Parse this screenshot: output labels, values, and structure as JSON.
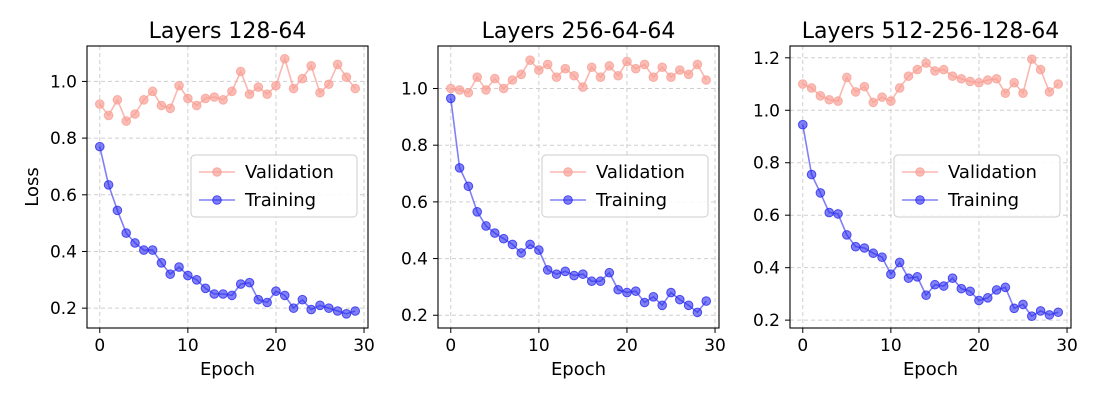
{
  "chart_data": [
    {
      "type": "line",
      "title": "Layers 128-64",
      "xlabel": "Epoch",
      "ylabel": "Loss",
      "xlim": [
        -1.45,
        30.45
      ],
      "ylim": [
        0.13,
        1.125
      ],
      "xticks": [
        0,
        10,
        20,
        30
      ],
      "xtick_labels": [
        "0",
        "10",
        "20",
        "30"
      ],
      "yticks": [
        0.2,
        0.4,
        0.6,
        0.8,
        1.0
      ],
      "ytick_labels": [
        "0.2",
        "0.4",
        "0.6",
        "0.8",
        "1.0"
      ],
      "grid": true,
      "legend": "center-right",
      "x": [
        0,
        1,
        2,
        3,
        4,
        5,
        6,
        7,
        8,
        9,
        10,
        11,
        12,
        13,
        14,
        15,
        16,
        17,
        18,
        19,
        20,
        21,
        22,
        23,
        24,
        25,
        26,
        27,
        28,
        29
      ],
      "series": [
        {
          "name": "Validation",
          "color": "#f8a095",
          "values": [
            0.92,
            0.88,
            0.935,
            0.86,
            0.885,
            0.935,
            0.965,
            0.915,
            0.905,
            0.985,
            0.94,
            0.915,
            0.94,
            0.945,
            0.935,
            0.965,
            1.035,
            0.955,
            0.98,
            0.955,
            0.985,
            1.08,
            0.975,
            1.01,
            1.055,
            0.96,
            0.99,
            1.06,
            1.015,
            0.975
          ]
        },
        {
          "name": "Training",
          "color": "#2b2bf0",
          "values": [
            0.77,
            0.635,
            0.545,
            0.465,
            0.43,
            0.405,
            0.405,
            0.36,
            0.32,
            0.345,
            0.315,
            0.3,
            0.27,
            0.25,
            0.25,
            0.245,
            0.285,
            0.29,
            0.23,
            0.22,
            0.26,
            0.245,
            0.2,
            0.23,
            0.195,
            0.21,
            0.2,
            0.19,
            0.18,
            0.19
          ]
        }
      ]
    },
    {
      "type": "line",
      "title": "Layers 256-64-64",
      "xlabel": "Epoch",
      "ylabel": "",
      "xlim": [
        -1.45,
        30.45
      ],
      "ylim": [
        0.155,
        1.15
      ],
      "xticks": [
        0,
        10,
        20,
        30
      ],
      "xtick_labels": [
        "0",
        "10",
        "20",
        "30"
      ],
      "yticks": [
        0.2,
        0.4,
        0.6,
        0.8,
        1.0
      ],
      "ytick_labels": [
        "0.2",
        "0.4",
        "0.6",
        "0.8",
        "1.0"
      ],
      "grid": true,
      "legend": "center-right",
      "x": [
        0,
        1,
        2,
        3,
        4,
        5,
        6,
        7,
        8,
        9,
        10,
        11,
        12,
        13,
        14,
        15,
        16,
        17,
        18,
        19,
        20,
        21,
        22,
        23,
        24,
        25,
        26,
        27,
        28,
        29
      ],
      "series": [
        {
          "name": "Validation",
          "color": "#f8a095",
          "values": [
            1.0,
            0.995,
            0.985,
            1.04,
            0.995,
            1.035,
            1.0,
            1.03,
            1.05,
            1.1,
            1.065,
            1.085,
            1.04,
            1.07,
            1.045,
            1.005,
            1.075,
            1.04,
            1.08,
            1.045,
            1.095,
            1.07,
            1.085,
            1.04,
            1.075,
            1.04,
            1.065,
            1.05,
            1.085,
            1.03
          ]
        },
        {
          "name": "Training",
          "color": "#2b2bf0",
          "values": [
            0.965,
            0.72,
            0.655,
            0.565,
            0.515,
            0.49,
            0.47,
            0.45,
            0.42,
            0.45,
            0.43,
            0.36,
            0.345,
            0.355,
            0.34,
            0.345,
            0.32,
            0.32,
            0.35,
            0.29,
            0.28,
            0.285,
            0.245,
            0.265,
            0.235,
            0.28,
            0.255,
            0.235,
            0.21,
            0.25
          ]
        }
      ]
    },
    {
      "type": "line",
      "title": "Layers 512-256-128-64",
      "xlabel": "Epoch",
      "ylabel": "",
      "xlim": [
        -1.45,
        30.45
      ],
      "ylim": [
        0.17,
        1.245
      ],
      "xticks": [
        0,
        10,
        20,
        30
      ],
      "xtick_labels": [
        "0",
        "10",
        "20",
        "30"
      ],
      "yticks": [
        0.2,
        0.4,
        0.6,
        0.8,
        1.0,
        1.2
      ],
      "ytick_labels": [
        "0.2",
        "0.4",
        "0.6",
        "0.8",
        "1.0",
        "1.2"
      ],
      "grid": true,
      "legend": "center-right",
      "x": [
        0,
        1,
        2,
        3,
        4,
        5,
        6,
        7,
        8,
        9,
        10,
        11,
        12,
        13,
        14,
        15,
        16,
        17,
        18,
        19,
        20,
        21,
        22,
        23,
        24,
        25,
        26,
        27,
        28,
        29
      ],
      "series": [
        {
          "name": "Validation",
          "color": "#f8a095",
          "values": [
            1.1,
            1.085,
            1.055,
            1.04,
            1.035,
            1.125,
            1.07,
            1.09,
            1.03,
            1.05,
            1.035,
            1.085,
            1.13,
            1.155,
            1.18,
            1.15,
            1.155,
            1.13,
            1.12,
            1.11,
            1.105,
            1.115,
            1.12,
            1.065,
            1.105,
            1.065,
            1.195,
            1.155,
            1.07,
            1.1
          ]
        },
        {
          "name": "Training",
          "color": "#2b2bf0",
          "values": [
            0.945,
            0.755,
            0.685,
            0.61,
            0.605,
            0.525,
            0.48,
            0.475,
            0.455,
            0.44,
            0.375,
            0.42,
            0.36,
            0.365,
            0.295,
            0.335,
            0.33,
            0.36,
            0.32,
            0.31,
            0.275,
            0.285,
            0.315,
            0.325,
            0.245,
            0.26,
            0.215,
            0.235,
            0.22,
            0.23
          ]
        }
      ]
    }
  ]
}
